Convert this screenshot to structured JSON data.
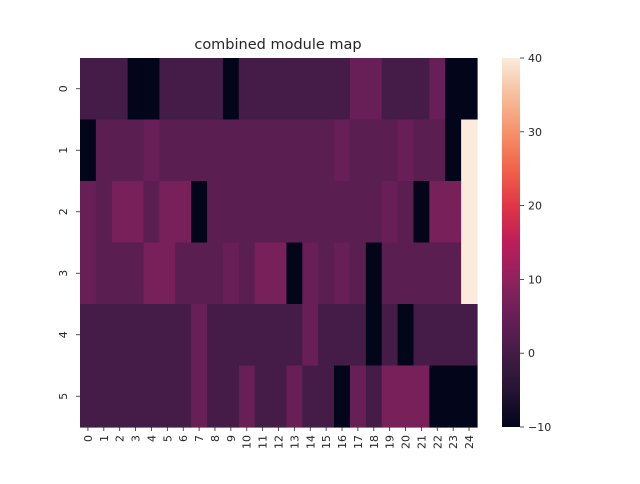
{
  "chart_data": {
    "type": "heatmap",
    "title": "combined module map",
    "xlabel": "",
    "ylabel": "",
    "x_categories": [
      "0",
      "1",
      "2",
      "3",
      "4",
      "5",
      "6",
      "7",
      "8",
      "9",
      "10",
      "11",
      "12",
      "13",
      "14",
      "15",
      "16",
      "17",
      "18",
      "19",
      "20",
      "21",
      "22",
      "23",
      "24"
    ],
    "y_categories": [
      "0",
      "1",
      "2",
      "3",
      "4",
      "5"
    ],
    "values": [
      [
        0,
        0,
        0,
        -10,
        -10,
        0,
        0,
        0,
        0,
        -10,
        0,
        0,
        0,
        0,
        0,
        0,
        0,
        5,
        5,
        0,
        0,
        0,
        5,
        -10,
        -10
      ],
      [
        -10,
        3,
        3,
        3,
        5,
        3,
        3,
        3,
        3,
        3,
        3,
        3,
        3,
        3,
        3,
        3,
        5,
        3,
        3,
        3,
        5,
        3,
        3,
        -10,
        40
      ],
      [
        5,
        3,
        7,
        7,
        3,
        7,
        7,
        -10,
        3,
        3,
        3,
        3,
        3,
        3,
        3,
        3,
        3,
        3,
        3,
        5,
        3,
        -10,
        7,
        7,
        40
      ],
      [
        5,
        3,
        3,
        3,
        7,
        7,
        3,
        3,
        3,
        5,
        3,
        7,
        7,
        -10,
        5,
        3,
        5,
        3,
        -10,
        3,
        3,
        3,
        3,
        3,
        40
      ],
      [
        0,
        0,
        0,
        0,
        0,
        0,
        0,
        5,
        0,
        0,
        0,
        0,
        0,
        0,
        5,
        0,
        0,
        0,
        -10,
        0,
        -10,
        0,
        0,
        0,
        0
      ],
      [
        0,
        0,
        0,
        0,
        0,
        0,
        0,
        5,
        0,
        0,
        5,
        0,
        0,
        5,
        0,
        0,
        -10,
        5,
        0,
        7,
        7,
        7,
        -10,
        -10,
        -10
      ]
    ],
    "colorbar": {
      "min": -10,
      "max": 40,
      "ticks": [
        "40",
        "30",
        "20",
        "10",
        "0",
        "−10"
      ]
    },
    "colormap": "rocket",
    "grid": false,
    "legend": "colorbar-right"
  }
}
